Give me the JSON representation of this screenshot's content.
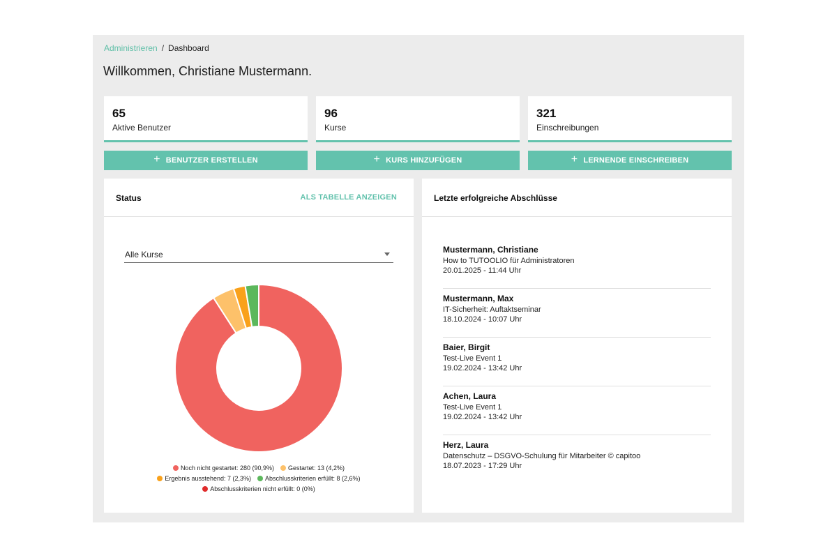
{
  "breadcrumb": {
    "link": "Administrieren",
    "separator": "/",
    "current": "Dashboard"
  },
  "welcome": "Willkommen, Christiane Mustermann.",
  "stats": [
    {
      "value": "65",
      "label": "Aktive Benutzer"
    },
    {
      "value": "96",
      "label": "Kurse"
    },
    {
      "value": "321",
      "label": "Einschreibungen"
    }
  ],
  "actions": [
    {
      "label": "BENUTZER ERSTELLEN"
    },
    {
      "label": "KURS HINZUFÜGEN"
    },
    {
      "label": "LERNENDE EINSCHREIBEN"
    }
  ],
  "status_panel": {
    "title": "Status",
    "table_link": "ALS TABELLE ANZEIGEN",
    "select_value": "Alle Kurse",
    "legend": [
      {
        "label": "Noch nicht gestartet: 280 (90,9%)",
        "color": "#f0635f"
      },
      {
        "label": "Gestartet: 13 (4,2%)",
        "color": "#fdc16a"
      },
      {
        "label": "Ergebnis ausstehend: 7 (2,3%)",
        "color": "#f9a11b"
      },
      {
        "label": "Abschlusskriterien erfüllt: 8 (2,6%)",
        "color": "#5cb85c"
      },
      {
        "label": "Abschlusskriterien nicht erfüllt: 0 (0%)",
        "color": "#e02c2c"
      }
    ]
  },
  "chart_data": {
    "type": "pie",
    "categories": [
      "Noch nicht gestartet",
      "Gestartet",
      "Ergebnis ausstehend",
      "Abschlusskriterien erfüllt",
      "Abschlusskriterien nicht erfüllt"
    ],
    "values": [
      280,
      13,
      7,
      8,
      0
    ],
    "colors": [
      "#f0635f",
      "#fdc16a",
      "#f9a11b",
      "#5cb85c",
      "#e02c2c"
    ],
    "donut": true,
    "legend": "bottom"
  },
  "completions_panel": {
    "title": "Letzte erfolgreiche Abschlüsse",
    "items": [
      {
        "name": "Mustermann, Christiane",
        "course": "How to TUTOOLIO für Administratoren",
        "date": "20.01.2025 - 11:44 Uhr"
      },
      {
        "name": "Mustermann, Max",
        "course": "IT-Sicherheit: Auftaktseminar",
        "date": "18.10.2024 - 10:07 Uhr"
      },
      {
        "name": "Baier, Birgit",
        "course": "Test-Live Event 1",
        "date": "19.02.2024 - 13:42 Uhr"
      },
      {
        "name": "Achen, Laura",
        "course": "Test-Live Event 1",
        "date": "19.02.2024 - 13:42 Uhr"
      },
      {
        "name": "Herz, Laura",
        "course": "Datenschutz – DSGVO-Schulung für Mitarbeiter © capitoo",
        "date": "18.07.2023 - 17:29 Uhr"
      }
    ]
  }
}
